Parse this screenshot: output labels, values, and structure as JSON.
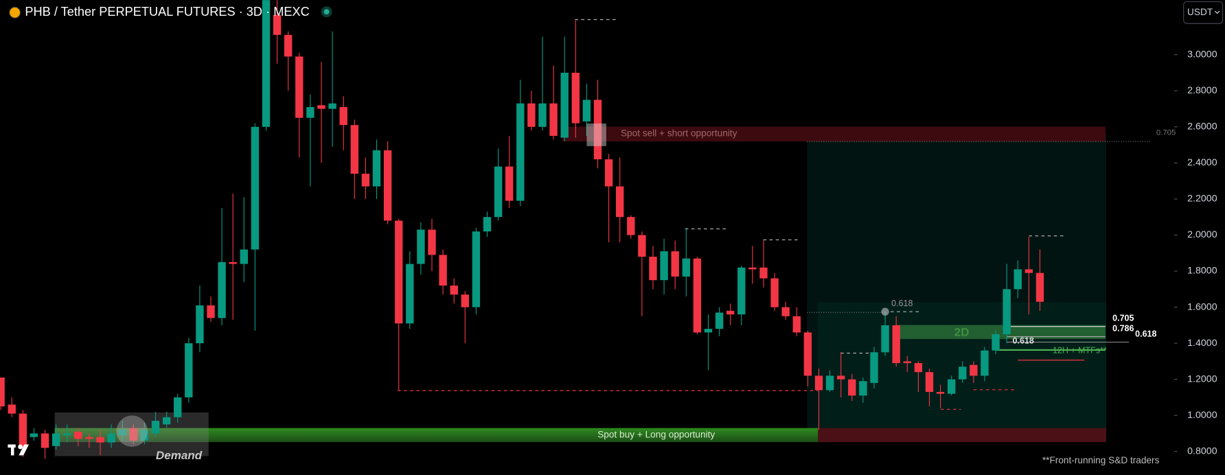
{
  "chart_data": {
    "type": "candlestick",
    "title": "PHB / Tether PERPETUAL FUTURES · 3D · MEXC",
    "currency": "USDT",
    "up_color": "#089981",
    "down_color": "#f23645",
    "open": [
      1.21,
      1.06,
      1.01,
      0.88,
      0.9,
      0.83,
      0.89,
      0.91,
      0.88,
      0.88,
      0.85,
      0.89,
      0.93,
      0.86,
      0.9,
      0.95,
      0.99,
      1.1,
      1.4,
      1.61,
      1.54,
      1.85,
      1.84,
      1.92,
      2.6,
      3.22,
      3.11,
      2.99,
      2.65,
      2.72,
      2.7,
      2.71,
      2.61,
      2.34,
      2.27,
      2.47,
      2.08,
      1.51,
      1.84,
      2.03,
      1.89,
      1.72,
      1.67,
      1.6,
      2.02,
      2.1,
      2.38,
      2.19,
      2.73,
      2.6,
      2.73,
      2.54,
      2.9,
      2.63,
      2.75,
      2.42,
      2.27,
      2.1,
      2.0,
      1.88,
      1.75,
      1.91,
      1.77,
      1.87,
      1.46,
      1.48,
      1.58,
      1.56,
      1.82,
      1.82,
      1.76,
      1.6,
      1.55,
      1.46,
      1.22,
      1.14,
      1.22,
      1.2,
      1.11,
      1.18,
      1.35,
      1.5,
      1.3,
      1.29,
      1.24,
      1.13,
      1.12,
      1.2,
      1.28,
      1.22,
      1.36,
      1.45,
      1.7,
      1.81,
      1.79
    ],
    "high": [
      1.21,
      1.1,
      1.03,
      0.93,
      0.92,
      0.95,
      0.95,
      0.93,
      0.9,
      0.92,
      0.95,
      0.97,
      0.95,
      0.96,
      1.02,
      1.02,
      1.12,
      1.43,
      1.72,
      1.66,
      2.15,
      2.23,
      2.21,
      2.62,
      3.4,
      3.35,
      3.13,
      3.01,
      2.78,
      2.96,
      3.13,
      2.77,
      2.64,
      2.43,
      2.53,
      2.52,
      2.09,
      1.91,
      2.07,
      2.09,
      1.92,
      1.76,
      1.69,
      2.04,
      2.13,
      2.48,
      2.55,
      2.86,
      2.8,
      3.1,
      2.94,
      3.1,
      3.19,
      2.84,
      2.86,
      2.45,
      2.43,
      2.11,
      2.02,
      1.94,
      1.98,
      1.97,
      2.04,
      1.88,
      1.56,
      1.6,
      1.62,
      1.83,
      1.94,
      1.97,
      1.79,
      1.63,
      1.6,
      1.47,
      1.26,
      1.25,
      1.35,
      1.23,
      1.21,
      1.38,
      1.57,
      1.55,
      1.33,
      1.3,
      1.26,
      1.17,
      1.22,
      1.3,
      1.3,
      1.38,
      1.47,
      1.84,
      1.86,
      1.99,
      1.92
    ],
    "low": [
      1.03,
      0.99,
      0.77,
      0.86,
      0.76,
      0.81,
      0.85,
      0.83,
      0.82,
      0.78,
      0.82,
      0.86,
      0.84,
      0.84,
      0.88,
      0.93,
      0.96,
      1.07,
      1.35,
      1.52,
      1.5,
      1.53,
      1.74,
      1.47,
      2.58,
      2.95,
      2.8,
      2.43,
      2.27,
      2.4,
      2.49,
      2.47,
      2.2,
      2.2,
      2.2,
      2.06,
      1.14,
      1.48,
      1.78,
      1.8,
      1.67,
      1.62,
      1.4,
      1.56,
      1.99,
      2.08,
      2.15,
      2.16,
      2.58,
      2.58,
      2.53,
      2.52,
      2.54,
      2.55,
      2.37,
      1.96,
      1.96,
      1.98,
      1.55,
      1.7,
      1.67,
      1.7,
      1.66,
      1.45,
      1.25,
      1.44,
      1.5,
      1.5,
      1.73,
      1.71,
      1.58,
      1.53,
      1.44,
      1.16,
      0.92,
      1.13,
      1.1,
      1.08,
      1.07,
      1.15,
      1.33,
      1.27,
      1.24,
      1.13,
      1.05,
      1.04,
      1.11,
      1.18,
      1.18,
      1.19,
      1.34,
      1.4,
      1.65,
      1.56,
      1.58
    ],
    "close": [
      1.05,
      1.01,
      0.82,
      0.9,
      0.82,
      0.9,
      0.9,
      0.87,
      0.87,
      0.85,
      0.9,
      0.92,
      0.86,
      0.92,
      0.97,
      0.99,
      1.1,
      1.4,
      1.61,
      1.54,
      1.85,
      1.84,
      1.92,
      2.6,
      3.35,
      3.11,
      2.99,
      2.65,
      2.71,
      2.7,
      2.73,
      2.61,
      2.34,
      2.27,
      2.47,
      2.08,
      1.51,
      1.84,
      2.03,
      1.89,
      1.72,
      1.67,
      1.6,
      2.02,
      2.1,
      2.38,
      2.19,
      2.73,
      2.6,
      2.73,
      2.55,
      2.9,
      2.62,
      2.75,
      2.42,
      2.27,
      2.1,
      2.0,
      1.88,
      1.75,
      1.91,
      1.77,
      1.87,
      1.46,
      1.48,
      1.57,
      1.56,
      1.82,
      1.81,
      1.76,
      1.6,
      1.55,
      1.46,
      1.22,
      1.14,
      1.22,
      1.2,
      1.11,
      1.19,
      1.35,
      1.5,
      1.29,
      1.29,
      1.24,
      1.13,
      1.12,
      1.2,
      1.27,
      1.22,
      1.36,
      1.45,
      1.7,
      1.81,
      1.79,
      1.63
    ],
    "ylim": [
      0.67,
      3.303
    ],
    "yticks": [
      {
        "value": 0.8,
        "label": "0.8000"
      },
      {
        "value": 1.0,
        "label": "1.0000"
      },
      {
        "value": 1.2,
        "label": "1.2000"
      },
      {
        "value": 1.4,
        "label": "1.4000"
      },
      {
        "value": 1.6,
        "label": "1.6000"
      },
      {
        "value": 1.8,
        "label": "1.8000"
      },
      {
        "value": 2.0,
        "label": "2.0000"
      },
      {
        "value": 2.2,
        "label": "2.2000"
      },
      {
        "value": 2.4,
        "label": "2.4000"
      },
      {
        "value": 2.6,
        "label": "2.6000"
      },
      {
        "value": 2.8,
        "label": "2.8000"
      },
      {
        "value": 3.0,
        "label": "3.0000"
      }
    ],
    "annotations": [
      "Spot sell + short opportunity",
      "Spot buy + Long opportunity",
      "Demand",
      "2D",
      "12H + MTFs**",
      "**Front-running S&D traders",
      "0.705",
      "0.705",
      "0.786",
      "0.618",
      "0.618",
      "0.618"
    ]
  }
}
